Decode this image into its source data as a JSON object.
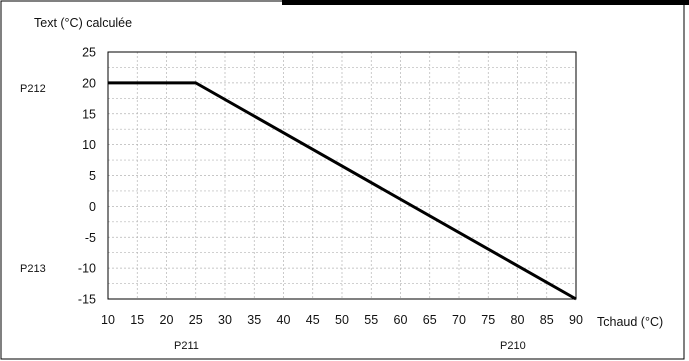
{
  "chart_data": {
    "type": "line",
    "ylabel": "Text (°C) calculée",
    "xlabel": "Tchaud (°C)",
    "xlim": [
      10,
      90
    ],
    "ylim": [
      -15,
      25
    ],
    "x_ticks": [
      10,
      15,
      20,
      25,
      30,
      35,
      40,
      45,
      50,
      55,
      60,
      65,
      70,
      75,
      80,
      85,
      90
    ],
    "y_ticks": [
      25,
      20,
      15,
      10,
      5,
      0,
      -5,
      -10,
      -15
    ],
    "grid": true,
    "series": [
      {
        "x": [
          10,
          25,
          90
        ],
        "y": [
          20,
          20,
          -15
        ],
        "color": "#000000"
      }
    ],
    "param_labels": {
      "p212": "P212",
      "p213": "P213",
      "p211": "P211",
      "p210": "P210"
    }
  }
}
